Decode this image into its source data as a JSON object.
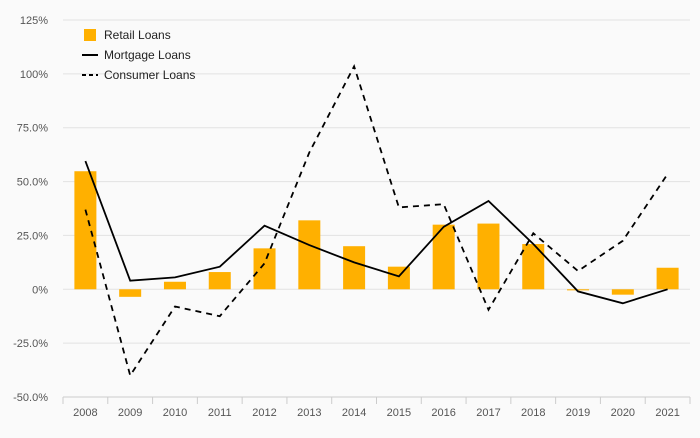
{
  "chart_data": {
    "type": "bar",
    "categories": [
      "2008",
      "2009",
      "2010",
      "2011",
      "2012",
      "2013",
      "2014",
      "2015",
      "2016",
      "2017",
      "2018",
      "2019",
      "2020",
      "2021"
    ],
    "ylim": [
      -50,
      125
    ],
    "yticks": [
      -50,
      -25,
      0,
      25,
      50,
      75,
      100,
      125
    ],
    "ytick_labels": [
      "-50.0%",
      "-25.0%",
      "0%",
      "25.0%",
      "50.0%",
      "75.0%",
      "100%",
      "125%"
    ],
    "grid": true,
    "legend_position": "top-left",
    "series": [
      {
        "name": "Retail Loans",
        "type": "bar",
        "color": "#FFB000",
        "values": [
          54.8,
          -3.5,
          3.5,
          8.0,
          19.0,
          32.0,
          20.0,
          10.5,
          30.0,
          30.5,
          21.0,
          -0.5,
          -2.5,
          10.0
        ]
      },
      {
        "name": "Mortgage Loans",
        "type": "line",
        "style": "solid",
        "color": "#000000",
        "values": [
          59.5,
          4.0,
          5.5,
          10.5,
          29.5,
          20.5,
          12.5,
          6.0,
          29.0,
          41.0,
          21.0,
          -1.0,
          -6.5,
          0.0
        ]
      },
      {
        "name": "Consumer Loans",
        "type": "line",
        "style": "dashed",
        "color": "#000000",
        "values": [
          37.0,
          -40.0,
          -8.0,
          -12.5,
          12.0,
          63.5,
          103.5,
          38.0,
          39.5,
          -9.5,
          26.0,
          8.5,
          22.5,
          53.5
        ]
      }
    ]
  }
}
